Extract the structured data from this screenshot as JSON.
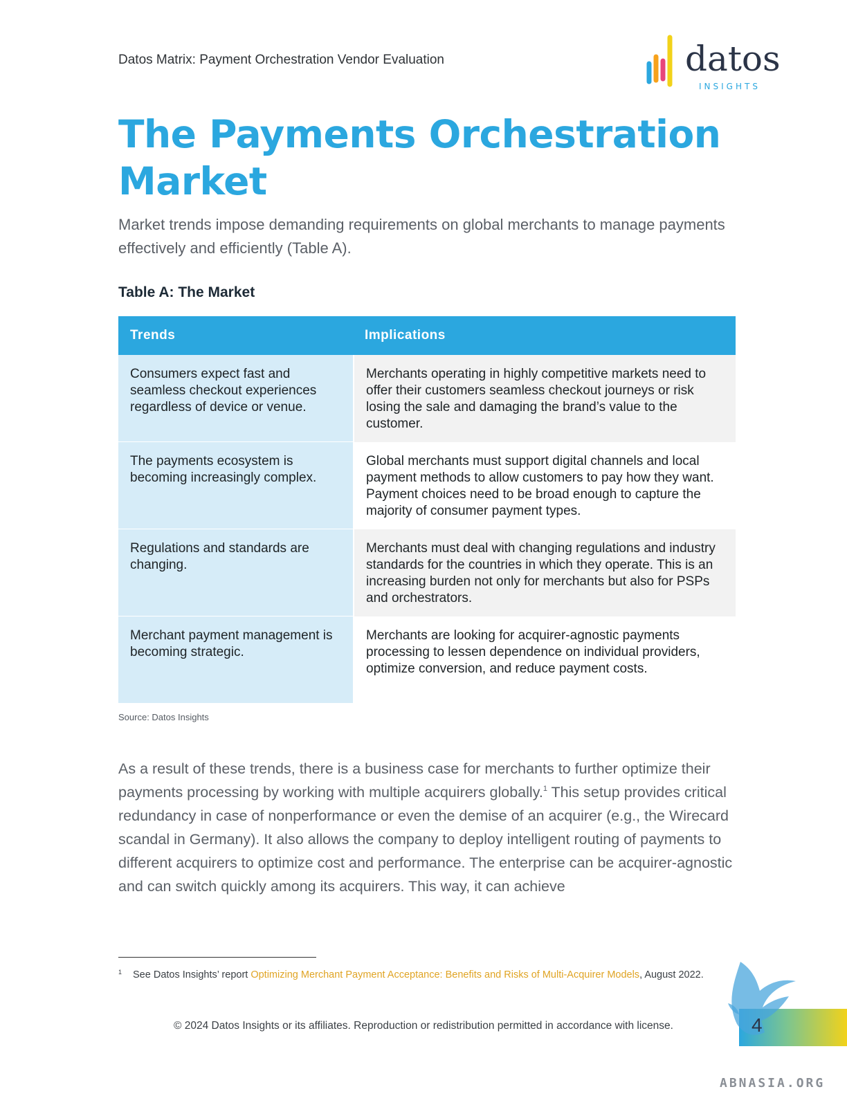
{
  "header": {
    "report_title": "Datos Matrix: Payment Orchestration Vendor Evaluation",
    "logo_word": "datos",
    "logo_sub": "INSIGHTS"
  },
  "page_title": "The Payments Orchestration Market",
  "intro": "Market trends impose demanding requirements on global merchants to manage payments effectively and efficiently (Table A).",
  "table": {
    "caption": "Table A: The Market",
    "headers": [
      "Trends",
      "Implications"
    ],
    "rows": [
      {
        "trend": "Consumers expect fast and seamless checkout experiences regardless of device or venue.",
        "implication": "Merchants operating in highly competitive markets need to offer their customers seamless checkout journeys or risk losing the sale and damaging the brand’s value to the customer."
      },
      {
        "trend": "The payments ecosystem is becoming increasingly complex.",
        "implication": "Global merchants must support digital channels and local payment methods to allow customers to pay how they want. Payment choices need to be broad enough to capture the majority of consumer payment types."
      },
      {
        "trend": "Regulations and standards are changing.",
        "implication": "Merchants must deal with changing regulations and industry standards for the countries in which they operate. This is an increasing burden not only for merchants but also for PSPs and orchestrators."
      },
      {
        "trend": "Merchant payment management is becoming strategic.",
        "implication": "Merchants are looking for acquirer-agnostic payments processing to lessen dependence on individual providers, optimize conversion, and reduce payment costs."
      }
    ],
    "source": "Source: Datos Insights"
  },
  "body": {
    "part1": "As a result of these trends, there is a business case for merchants to further optimize their payments processing by working with multiple acquirers globally.",
    "footnote_ref": "1",
    "part2": " This setup provides critical redundancy in case of nonperformance or even the demise of an acquirer (e.g., the Wirecard scandal in Germany). It also allows the company to deploy intelligent routing of payments to different acquirers to optimize cost and performance. The enterprise can be acquirer-agnostic and can switch quickly among its acquirers. This way, it can achieve"
  },
  "footnote": {
    "number": "1",
    "prefix": "See Datos Insights’ report ",
    "link_text": "Optimizing Merchant Payment Acceptance: Benefits and Risks of Multi-Acquirer Models",
    "suffix": ", August 2022."
  },
  "footer": {
    "copyright": "© 2024 Datos Insights or its affiliates. Reproduction or redistribution permitted in accordance with license.",
    "page_number": "4",
    "watermark": "ABNASIA.ORG"
  },
  "colors": {
    "brand_blue": "#2ba7df",
    "light_blue": "#d6ecf8",
    "link_gold": "#e0a424"
  }
}
